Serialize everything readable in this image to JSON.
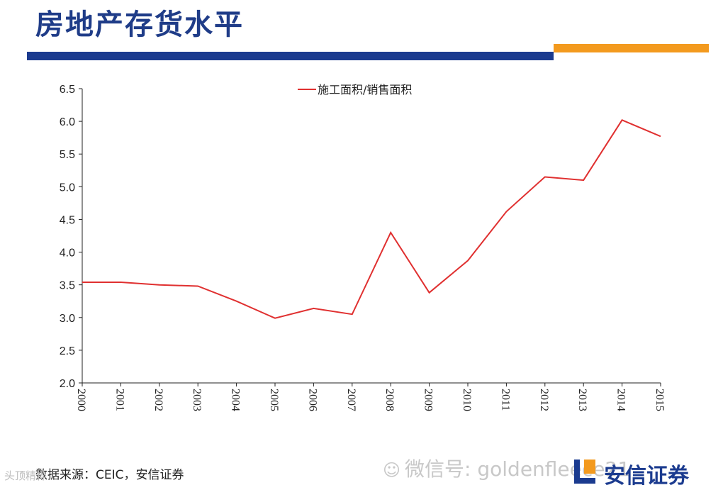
{
  "page": {
    "title": "房地产存货水平",
    "source": "数据来源：CEIC，安信证券",
    "watermark": "微信号: goldenfleece21",
    "watermark_left": "头顶精粹",
    "logo_text": "安信证券"
  },
  "colors": {
    "title": "#1f3c88",
    "bar_blue": "#1b3b8f",
    "bar_orange": "#f39a1e",
    "series": "#e03030"
  },
  "chart_data": {
    "type": "line",
    "x": [
      "2000",
      "2001",
      "2002",
      "2003",
      "2004",
      "2005",
      "2006",
      "2007",
      "2008",
      "2009",
      "2010",
      "2011",
      "2012",
      "2013",
      "2014",
      "2015"
    ],
    "series": [
      {
        "name": "施工面积/销售面积",
        "values": [
          3.54,
          3.54,
          3.5,
          3.48,
          3.25,
          2.99,
          3.14,
          3.05,
          4.3,
          3.38,
          3.87,
          4.62,
          5.15,
          5.1,
          6.02,
          5.77
        ]
      }
    ],
    "ylim": [
      2.0,
      6.5
    ],
    "yticks": [
      "6.5",
      "6.0",
      "5.5",
      "5.0",
      "4.5",
      "4.0",
      "3.5",
      "3.0",
      "2.5",
      "2.0"
    ],
    "legend_position": "top-center",
    "grid": false
  }
}
